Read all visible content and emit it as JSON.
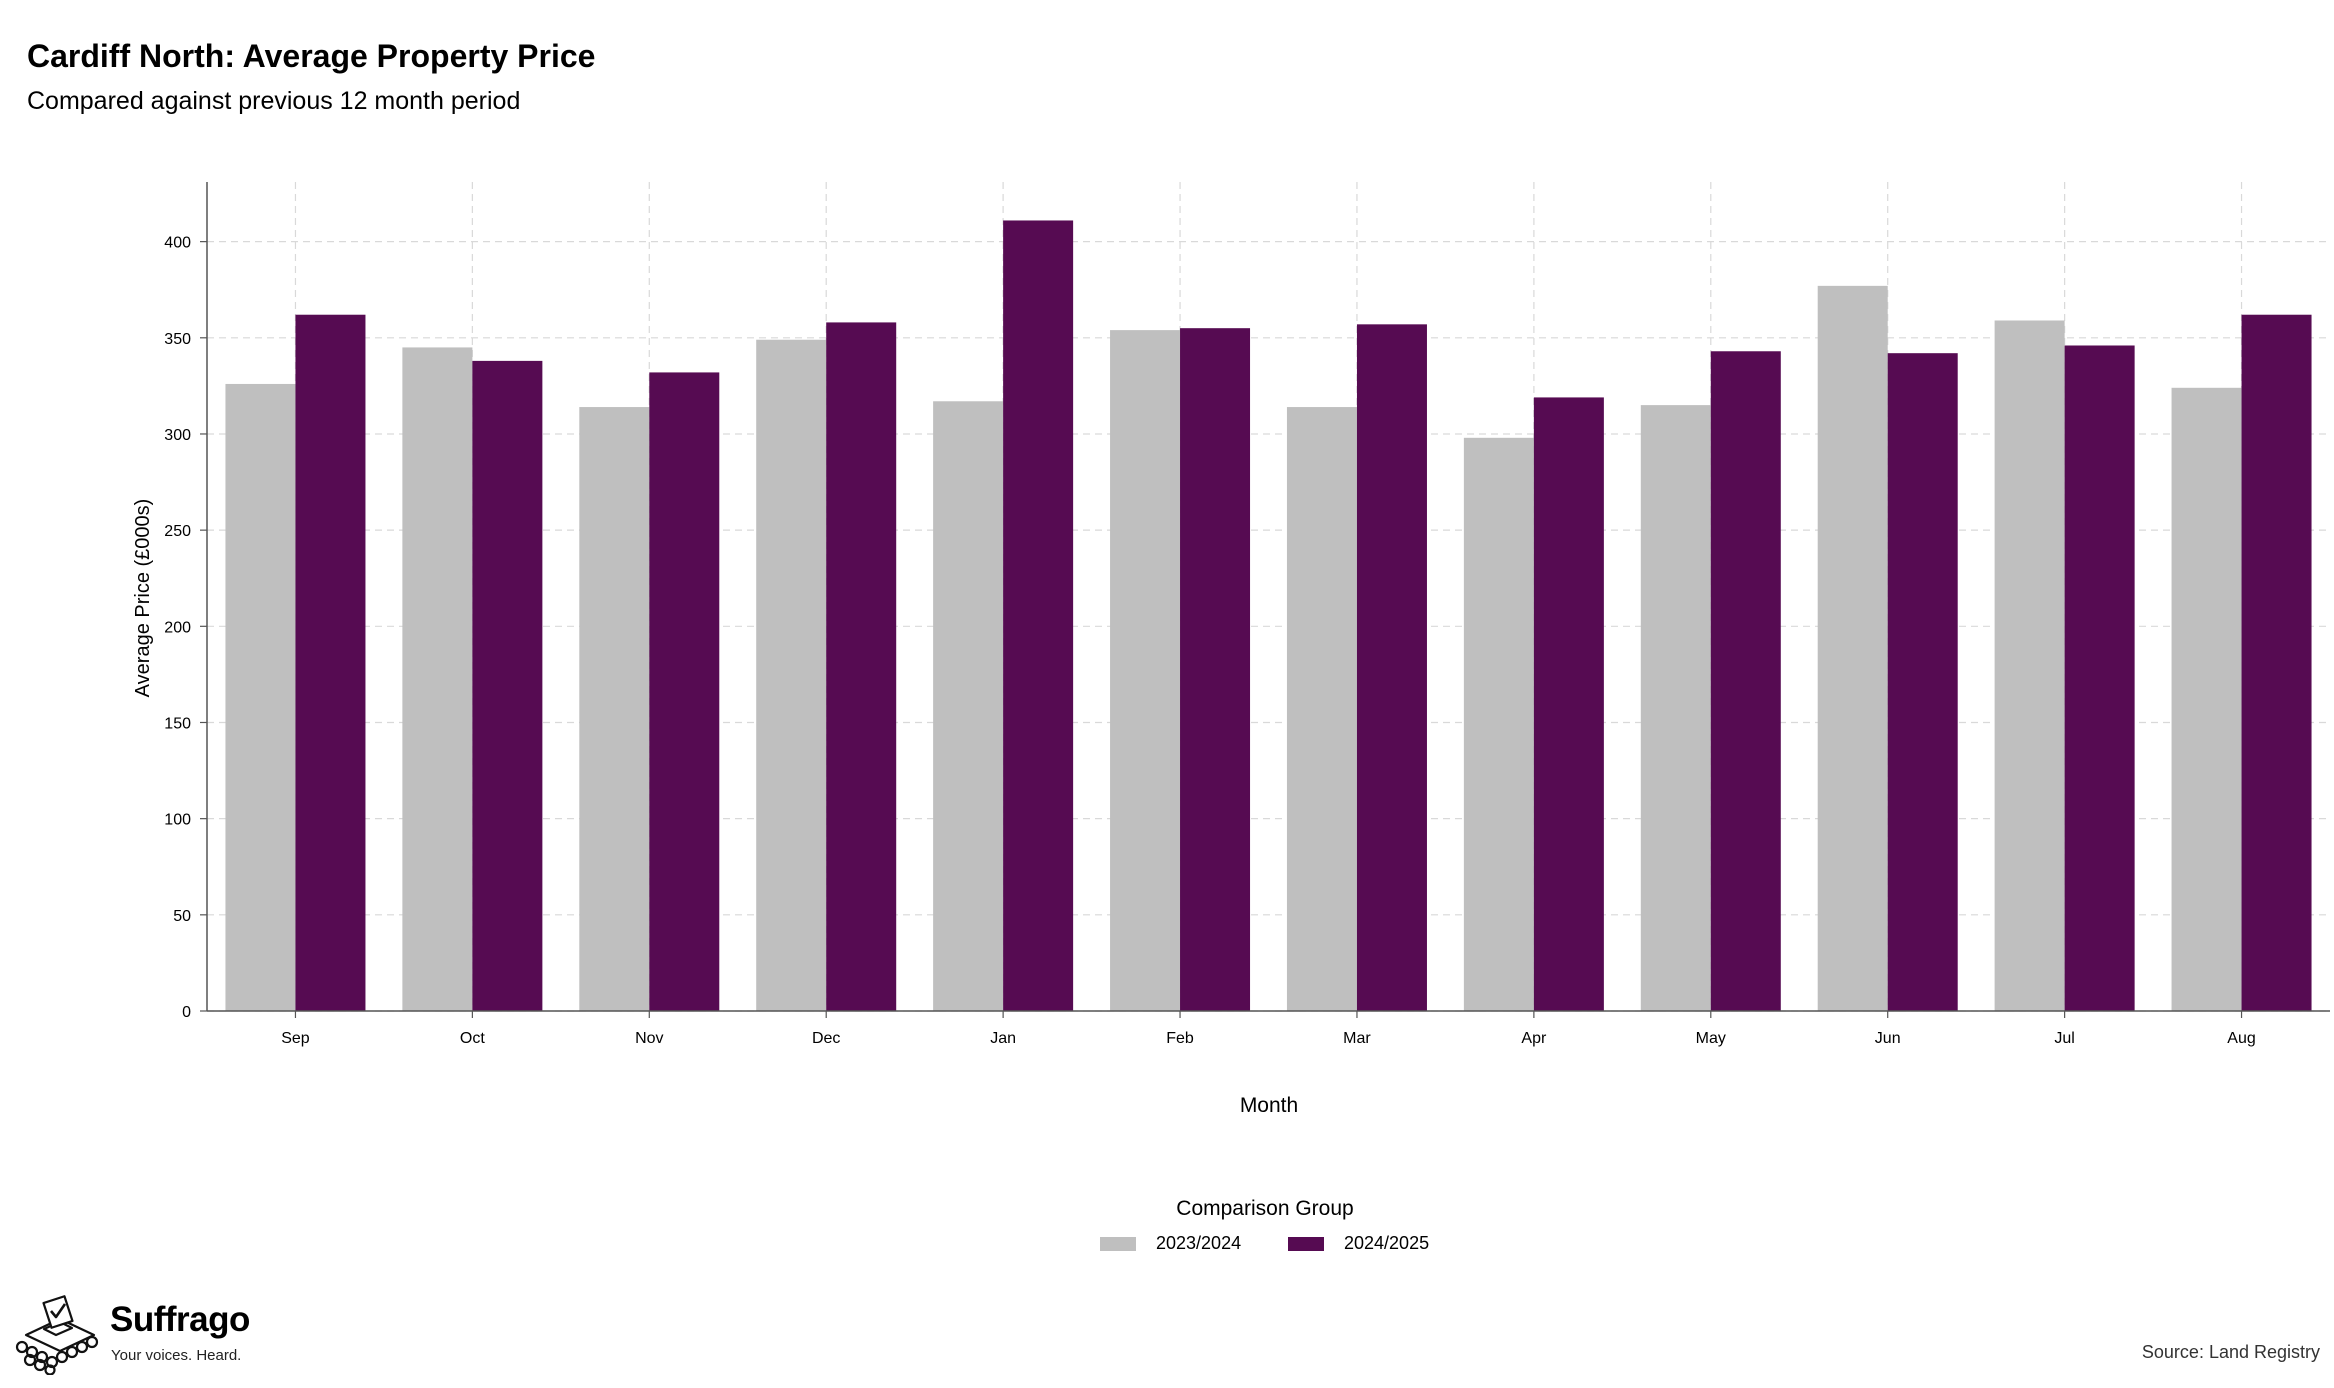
{
  "header": {
    "title": "Cardiff North: Average Property Price",
    "subtitle": "Compared against previous 12 month period"
  },
  "chart_data": {
    "type": "bar",
    "categories": [
      "Sep",
      "Oct",
      "Nov",
      "Dec",
      "Jan",
      "Feb",
      "Mar",
      "Apr",
      "May",
      "Jun",
      "Jul",
      "Aug"
    ],
    "series": [
      {
        "name": "2023/2024",
        "color": "#bfbfbf",
        "values": [
          326,
          345,
          314,
          349,
          317,
          354,
          314,
          298,
          315,
          377,
          359,
          324
        ]
      },
      {
        "name": "2024/2025",
        "color": "#560b52",
        "values": [
          362,
          338,
          332,
          358,
          411,
          355,
          357,
          319,
          343,
          342,
          346,
          362
        ]
      }
    ],
    "xlabel": "Month",
    "ylabel": "Average Price (£000s)",
    "ylim": [
      0,
      431
    ],
    "yticks": [
      0,
      50,
      100,
      150,
      200,
      250,
      300,
      350,
      400
    ],
    "grid": true,
    "legend": {
      "title": "Comparison Group",
      "position": "bottom"
    }
  },
  "footer": {
    "brand_name": "Suffrago",
    "brand_tagline": "Your voices. Heard.",
    "source": "Source: Land Registry"
  },
  "icons": {
    "logo": "ballot-box-icon"
  }
}
